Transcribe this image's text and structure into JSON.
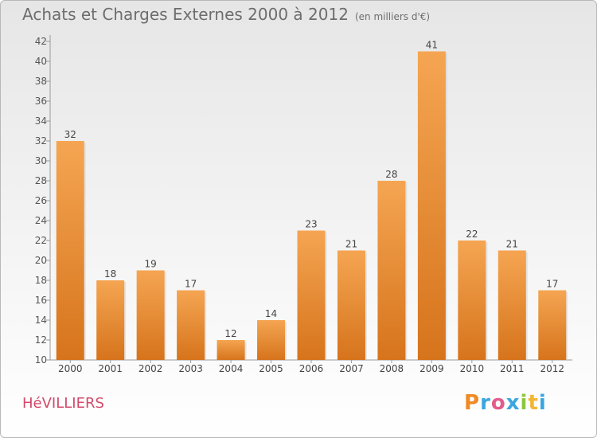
{
  "header": {
    "title": "Achats et Charges Externes 2000 à 2012",
    "subtitle": "(en milliers d'€)"
  },
  "footer": {
    "town": "HéVILLIERS",
    "brand": "Proxiti"
  },
  "colors": {
    "bar_light": "#f5a552",
    "bar_dark": "#d6741c",
    "town": "#d24a6a",
    "logo_letters": [
      "#f08a24",
      "#3aa6df",
      "#e35b8a",
      "#3aa6df",
      "#8cc63f",
      "#f2b632",
      "#3aa6df"
    ]
  },
  "chart_data": {
    "type": "bar",
    "categories": [
      "2000",
      "2001",
      "2002",
      "2003",
      "2004",
      "2005",
      "2006",
      "2007",
      "2008",
      "2009",
      "2010",
      "2011",
      "2012"
    ],
    "values": [
      32,
      18,
      19,
      17,
      12,
      14,
      23,
      21,
      28,
      41,
      22,
      21,
      17
    ],
    "ylim": [
      10,
      42
    ],
    "yticks": [
      10,
      12,
      14,
      16,
      18,
      20,
      22,
      24,
      26,
      28,
      30,
      32,
      34,
      36,
      38,
      40,
      42
    ],
    "grid": false,
    "data_labels": true
  }
}
